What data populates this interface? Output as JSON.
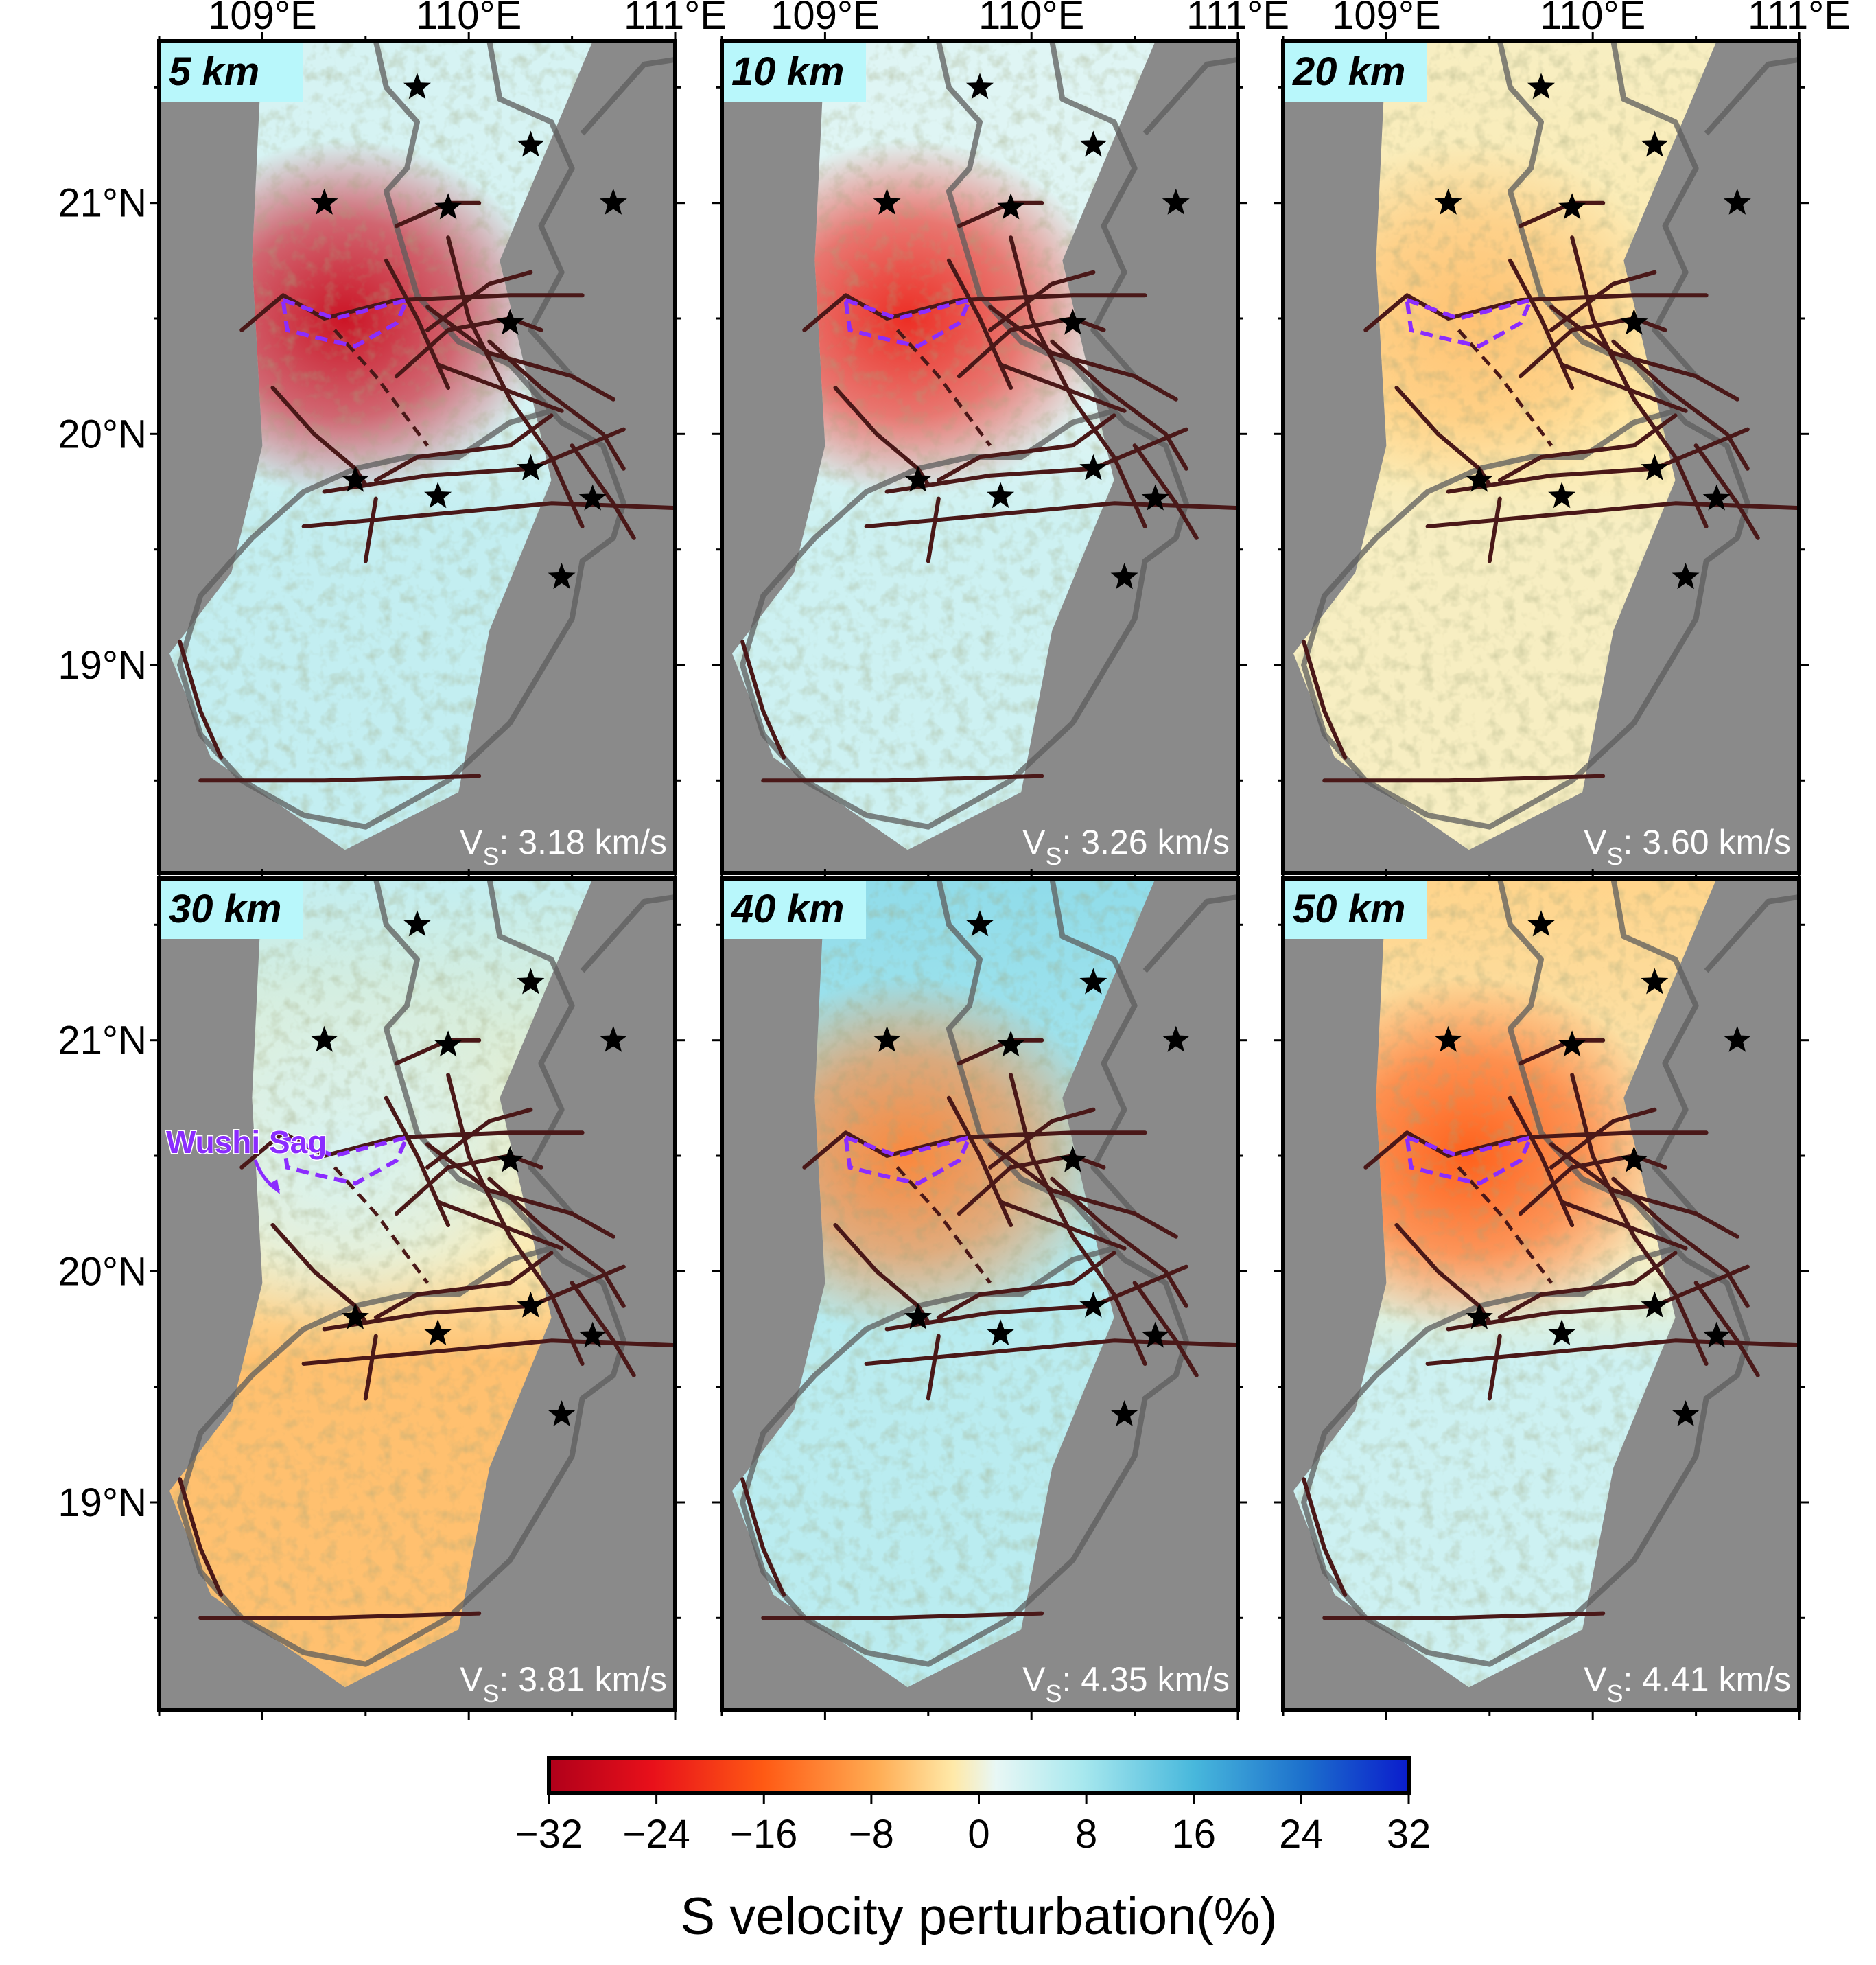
{
  "figure": {
    "x_axis": {
      "ticks": [
        "109°E",
        "110°E",
        "111°E"
      ]
    },
    "y_axis": {
      "ticks": [
        "21°N",
        "20°N",
        "19°N"
      ]
    },
    "colors": {
      "ocean": "#8a8a8a",
      "fault": "#4a1818",
      "sag": "#8b2cff",
      "label_bg": "#b8f7fb",
      "star": "#000000",
      "frame": "#000000"
    },
    "panels": [
      {
        "depth": "5 km",
        "vs_prefix": "V",
        "vs_sub": "S",
        "vs_value": ": 3.18 km/s",
        "anomaly_pct": -28,
        "south_pct": 5,
        "north_pct": 3
      },
      {
        "depth": "10 km",
        "vs_prefix": "V",
        "vs_sub": "S",
        "vs_value": ": 3.26 km/s",
        "anomaly_pct": -22,
        "south_pct": 4,
        "north_pct": 2
      },
      {
        "depth": "20 km",
        "vs_prefix": "V",
        "vs_sub": "S",
        "vs_value": ": 3.60 km/s",
        "anomaly_pct": -6,
        "south_pct": -1,
        "north_pct": -1
      },
      {
        "depth": "30 km",
        "vs_prefix": "V",
        "vs_sub": "S",
        "vs_value": ": 3.81 km/s",
        "anomaly_pct": 3,
        "south_pct": -6,
        "north_pct": 5
      },
      {
        "depth": "40 km",
        "vs_prefix": "V",
        "vs_sub": "S",
        "vs_value": ": 4.35 km/s",
        "anomaly_pct": -12,
        "south_pct": 6,
        "north_pct": 10
      },
      {
        "depth": "50 km",
        "vs_prefix": "V",
        "vs_sub": "S",
        "vs_value": ": 4.41 km/s",
        "anomaly_pct": -16,
        "south_pct": 4,
        "north_pct": -4
      }
    ],
    "annotation": {
      "label": "Wushi Sag"
    },
    "colorbar": {
      "ticks": [
        "−32",
        "−24",
        "−16",
        "−8",
        "0",
        "8",
        "16",
        "24",
        "32"
      ],
      "range": [
        -32,
        32
      ],
      "label": "S velocity perturbation(%)"
    }
  }
}
